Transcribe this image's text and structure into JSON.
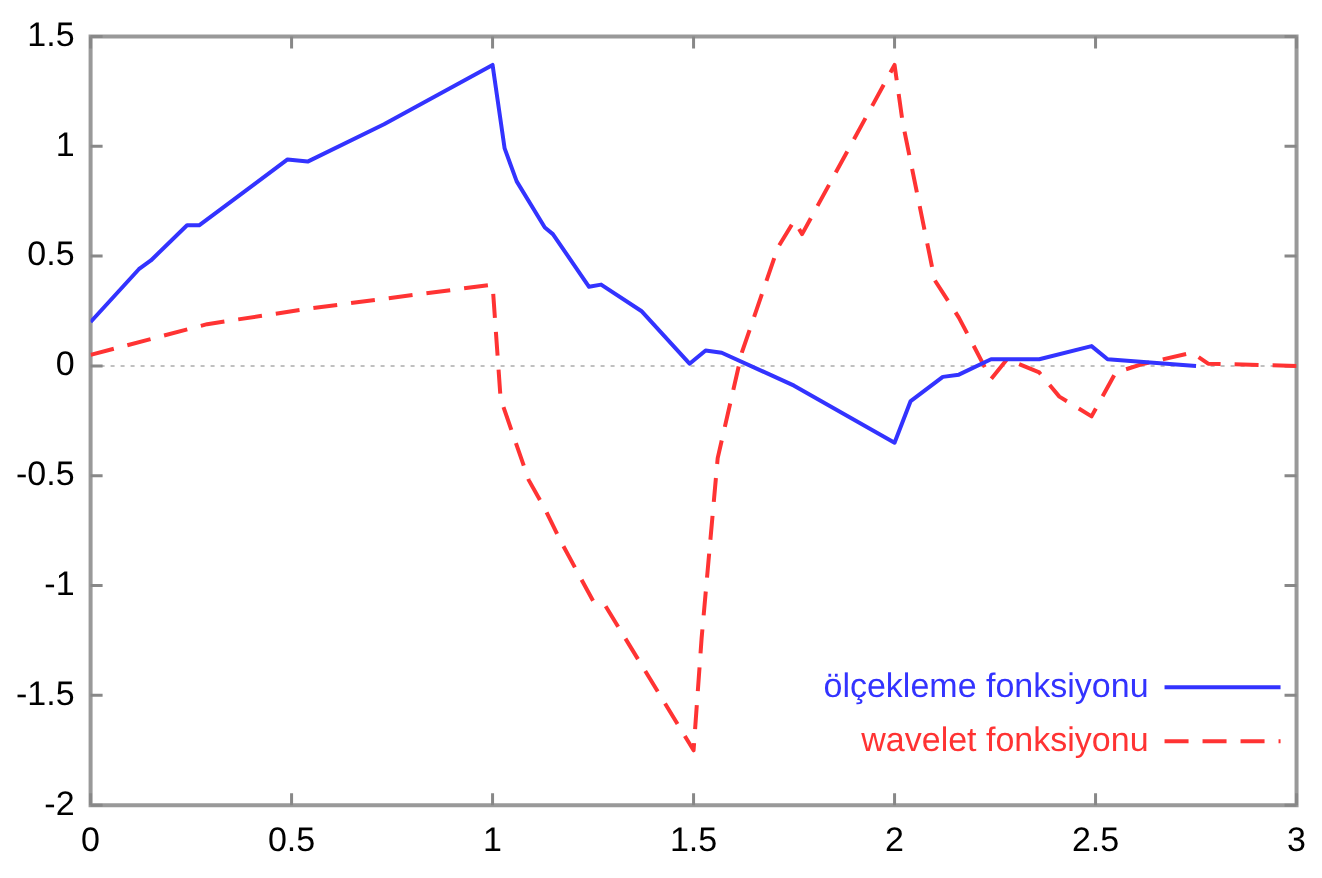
{
  "chart_data": {
    "type": "line",
    "xlim": [
      0,
      3
    ],
    "ylim": [
      -2,
      1.5
    ],
    "xticks": [
      0,
      0.5,
      1,
      1.5,
      2,
      2.5,
      3
    ],
    "yticks": [
      -2,
      -1.5,
      -1,
      -0.5,
      0,
      0.5,
      1,
      1.5
    ],
    "grid": false,
    "legend": "bottom right",
    "marker": "none",
    "ref_lines": [
      {
        "axis": "y",
        "value": 0,
        "color": "#c0c0c0",
        "line_style": "dotted"
      }
    ],
    "series": [
      {
        "name": "ölçekleme fonksiyonu",
        "color": "#3333ff",
        "line_style": "solid",
        "x": [
          0,
          0.12,
          0.15,
          0.24,
          0.27,
          0.49,
          0.54,
          0.73,
          1.0,
          1.03,
          1.06,
          1.13,
          1.15,
          1.24,
          1.27,
          1.37,
          1.49,
          1.53,
          1.57,
          1.75,
          2.0,
          2.04,
          2.12,
          2.16,
          2.24,
          2.36,
          2.49,
          2.53,
          2.75
        ],
        "values": [
          0.2,
          0.44,
          0.48,
          0.64,
          0.64,
          0.94,
          0.93,
          1.1,
          1.37,
          0.99,
          0.84,
          0.63,
          0.6,
          0.36,
          0.37,
          0.25,
          0.01,
          0.07,
          0.06,
          -0.09,
          -0.35,
          -0.16,
          -0.05,
          -0.04,
          0.03,
          0.03,
          0.09,
          0.03,
          0
        ]
      },
      {
        "name": "wavelet fonksiyonu",
        "color": "#ff3333",
        "line_style": "dashed",
        "x": [
          0,
          0.29,
          0.54,
          1.0,
          1.02,
          1.09,
          1.13,
          1.17,
          1.25,
          1.28,
          1.5,
          1.52,
          1.56,
          1.62,
          1.71,
          1.75,
          1.77,
          2.0,
          2.02,
          2.1,
          2.16,
          2.24,
          2.28,
          2.36,
          2.41,
          2.49,
          2.55,
          2.62,
          2.74,
          2.78,
          3.0
        ],
        "values": [
          0.05,
          0.19,
          0.26,
          0.37,
          -0.15,
          -0.52,
          -0.65,
          -0.8,
          -1.07,
          -1.09,
          -1.75,
          -1.24,
          -0.42,
          0.06,
          0.54,
          0.66,
          0.6,
          1.37,
          1.11,
          0.39,
          0.22,
          -0.06,
          0.03,
          -0.03,
          -0.14,
          -0.23,
          -0.03,
          0.01,
          0.06,
          0.01,
          0
        ]
      }
    ]
  }
}
